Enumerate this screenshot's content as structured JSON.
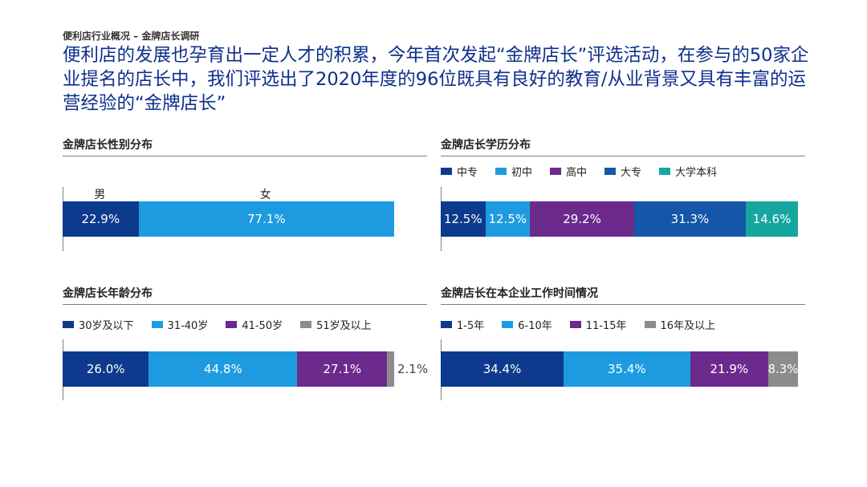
{
  "header": {
    "kicker": "便利店行业概况 – 金牌店长调研",
    "headline": "便利店的发展也孕育出一定人才的积累，今年首次发起“金牌店长”评选活动，在参与的50家企业提名的店长中，我们评选出了2020年度的96位既具有良好的教育/从业背景又具有丰富的运营经验的“金牌店长”"
  },
  "chart_data": [
    {
      "type": "stacked-bar",
      "title": "金牌店长性别分布",
      "legend": "none",
      "category_labels_above": true,
      "series": [
        {
          "name": "男",
          "value": 22.9,
          "label": "22.9%",
          "color": "#0d3a8c"
        },
        {
          "name": "女",
          "value": 77.1,
          "label": "77.1%",
          "color": "#1e9be0"
        }
      ]
    },
    {
      "type": "stacked-bar",
      "title": "金牌店长学历分布",
      "legend": "top",
      "series": [
        {
          "name": "中专",
          "value": 12.5,
          "label": "12.5%",
          "color": "#0d3a8c"
        },
        {
          "name": "初中",
          "value": 12.5,
          "label": "12.5%",
          "color": "#1e9be0"
        },
        {
          "name": "高中",
          "value": 29.2,
          "label": "29.2%",
          "color": "#6b2a8c"
        },
        {
          "name": "大专",
          "value": 31.3,
          "label": "31.3%",
          "color": "#1457a8"
        },
        {
          "name": "大学本科",
          "value": 14.6,
          "label": "14.6%",
          "color": "#16a6a0"
        }
      ]
    },
    {
      "type": "stacked-bar",
      "title": "金牌店长年龄分布",
      "legend": "top",
      "series": [
        {
          "name": "30岁及以下",
          "value": 26.0,
          "label": "26.0%",
          "color": "#0d3a8c"
        },
        {
          "name": "31-40岁",
          "value": 44.8,
          "label": "44.8%",
          "color": "#1e9be0"
        },
        {
          "name": "41-50岁",
          "value": 27.1,
          "label": "27.1%",
          "color": "#6b2a8c"
        },
        {
          "name": "51岁及以上",
          "value": 2.1,
          "label": "2.1%",
          "color": "#8c8c8c",
          "label_outside": true
        }
      ]
    },
    {
      "type": "stacked-bar",
      "title": "金牌店长在本企业工作时间情况",
      "legend": "top",
      "series": [
        {
          "name": "1-5年",
          "value": 34.4,
          "label": "34.4%",
          "color": "#0d3a8c"
        },
        {
          "name": "6-10年",
          "value": 35.4,
          "label": "35.4%",
          "color": "#1e9be0"
        },
        {
          "name": "11-15年",
          "value": 21.9,
          "label": "21.9%",
          "color": "#6b2a8c"
        },
        {
          "name": "16年及以上",
          "value": 8.3,
          "label": "8.3%",
          "color": "#8c8c8c"
        }
      ]
    }
  ]
}
